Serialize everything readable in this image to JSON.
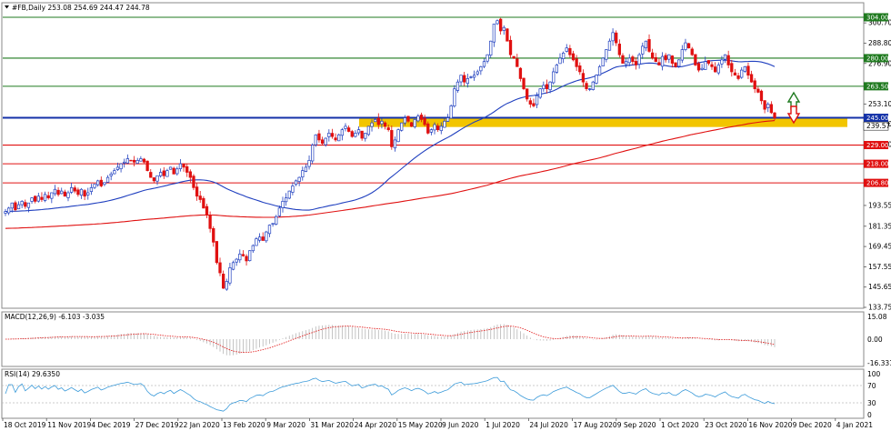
{
  "header": {
    "symbol_line": "#FB,Daily  253.08 254.69 244.47 244.78"
  },
  "macd": {
    "title": "MACD(12,26,9) -6.103 -3.035",
    "ticks": [
      "15.08",
      "0.00",
      "-16.331"
    ]
  },
  "rsi": {
    "title": "RSI(14) 29.6350",
    "ticks": [
      "100",
      "70",
      "30",
      "0"
    ]
  },
  "chart_data": {
    "type": "candlestick",
    "title": "#FB,Daily",
    "ohlc_last": {
      "open": 253.08,
      "high": 254.69,
      "low": 244.47,
      "close": 244.78
    },
    "ylim": [
      133.75,
      312.0
    ],
    "y_ticks": [
      300.7,
      288.8,
      276.9,
      253.1,
      241.2,
      229.3,
      193.55,
      181.35,
      169.45,
      157.55,
      145.65,
      133.75
    ],
    "x_ticks": [
      "18 Oct 2019",
      "11 Nov 2019",
      "4 Dec 2019",
      "27 Dec 2019",
      "22 Jan 2020",
      "13 Feb 2020",
      "9 Mar 2020",
      "31 Mar 2020",
      "24 Apr 2020",
      "15 May 2020",
      "9 Jun 2020",
      "1 Jul 2020",
      "24 Jul 2020",
      "17 Aug 2020",
      "9 Sep 2020",
      "1 Oct 2020",
      "23 Oct 2020",
      "16 Nov 2020",
      "9 Dec 2020",
      "4 Jan 2021"
    ],
    "price_levels": [
      {
        "value": 304.0,
        "label": "304.00",
        "color": "#1f7a1f"
      },
      {
        "value": 280.0,
        "label": "280.00",
        "color": "#1f7a1f"
      },
      {
        "value": 263.5,
        "label": "263.50",
        "color": "#1f7a1f"
      },
      {
        "value": 245.0,
        "label": "245.00",
        "color": "#1432a8"
      },
      {
        "value": 229.0,
        "label": "229.00",
        "color": "#e01010"
      },
      {
        "value": 218.0,
        "label": "218.00",
        "color": "#e01010"
      },
      {
        "value": 206.8,
        "label": "206.80",
        "color": "#e01010"
      }
    ],
    "support_zone": {
      "from": 239.6,
      "to": 245.0,
      "color": "#f2c500"
    },
    "support_zone_label": "239.57",
    "moving_averages": [
      {
        "period": 50,
        "color": "#1f3fbf"
      },
      {
        "period": 200,
        "color": "#e01010"
      }
    ],
    "series": [
      {
        "name": "close",
        "values": [
          190,
          192,
          195,
          191,
          194,
          196,
          193,
          195,
          198,
          196,
          199,
          197,
          200,
          198,
          201,
          203,
          200,
          202,
          199,
          201,
          204,
          202,
          200,
          203,
          199,
          201,
          204,
          206,
          208,
          205,
          207,
          210,
          212,
          214,
          216,
          218,
          219,
          221,
          220,
          219,
          220,
          221,
          219,
          214,
          210,
          208,
          211,
          213,
          211,
          214,
          216,
          212,
          215,
          218,
          216,
          213,
          210,
          204,
          199,
          197,
          192,
          188,
          180,
          172,
          160,
          154,
          145,
          149,
          157,
          160,
          162,
          165,
          164,
          161,
          167,
          170,
          174,
          175,
          173,
          178,
          182,
          183,
          187,
          192,
          196,
          198,
          202,
          205,
          208,
          210,
          214,
          216,
          220,
          229,
          235,
          232,
          230,
          233,
          236,
          234,
          232,
          235,
          238,
          240,
          237,
          234,
          236,
          238,
          233,
          236,
          240,
          242,
          244,
          241,
          243,
          240,
          238,
          228,
          232,
          238,
          242,
          245,
          243,
          240,
          244,
          246,
          244,
          241,
          236,
          238,
          241,
          238,
          240,
          243,
          245,
          252,
          262,
          266,
          270,
          266,
          268,
          269,
          270,
          272,
          275,
          278,
          282,
          290,
          300,
          302,
          296,
          298,
          290,
          282,
          280,
          275,
          268,
          262,
          256,
          253,
          252,
          258,
          262,
          264,
          262,
          266,
          272,
          276,
          280,
          283,
          286,
          282,
          279,
          275,
          272,
          266,
          262,
          262,
          266,
          270,
          275,
          280,
          285,
          290,
          295,
          289,
          282,
          277,
          278,
          280,
          278,
          276,
          282,
          287,
          290,
          284,
          280,
          278,
          276,
          281,
          279,
          282,
          277,
          275,
          279,
          285,
          289,
          286,
          282,
          276,
          273,
          274,
          278,
          277,
          275,
          272,
          276,
          279,
          282,
          276,
          272,
          270,
          268,
          273,
          275,
          270,
          266,
          262,
          260,
          255,
          250,
          253,
          248,
          245
        ]
      },
      {
        "name": "MACD(12,26,9)",
        "values": []
      },
      {
        "name": "RSI(14)",
        "values": []
      }
    ]
  }
}
